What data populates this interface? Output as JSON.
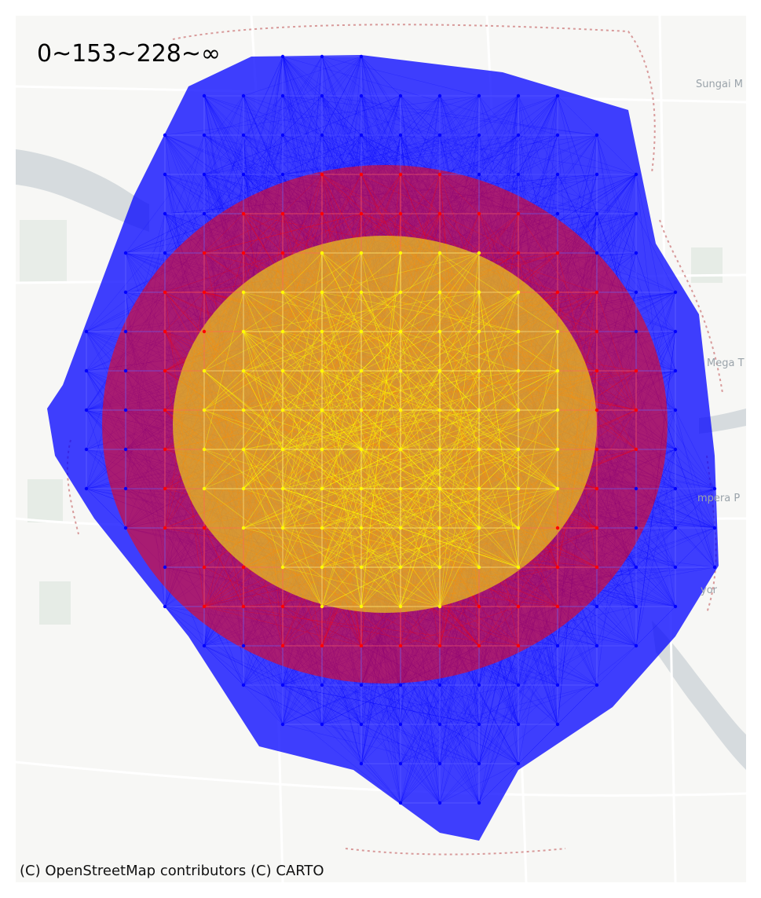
{
  "map": {
    "legend_title": "0~153~228~∞",
    "attribution": "(C) OpenStreetMap contributors (C) CARTO",
    "place_labels": [
      "Sungai M",
      "Mega T",
      "mpera P",
      "yor"
    ],
    "colors": {
      "background": "#f7f7f5",
      "water": "#d6dbde",
      "road": "#ffffff",
      "boundary": "#d89a9a",
      "band_far": "#0000ff",
      "band_mid": "#ff0000",
      "band_near": "#ffff00"
    },
    "bands": [
      {
        "label": "0~153",
        "color": "#ffff00"
      },
      {
        "label": "153~228",
        "color": "#ff0000"
      },
      {
        "label": "228~∞",
        "color": "#0000ff"
      }
    ]
  }
}
